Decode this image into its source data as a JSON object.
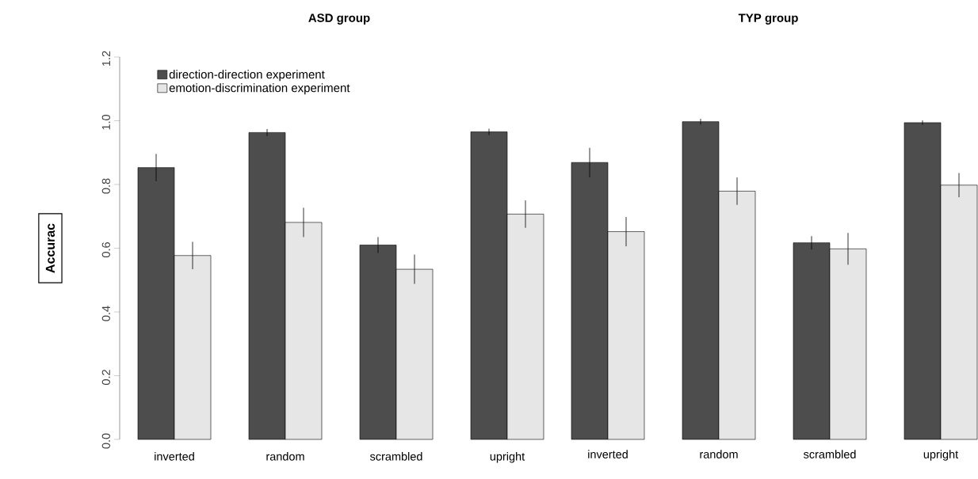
{
  "chart_data": [
    {
      "type": "bar",
      "title": "ASD group",
      "ylabel": "Accurac",
      "categories": [
        "inverted",
        "random",
        "scrambled",
        "upright"
      ],
      "series": [
        {
          "name": "direction-direction experiment",
          "color": "#4d4d4d",
          "values": [
            0.853,
            0.963,
            0.61,
            0.965
          ],
          "errors": [
            0.043,
            0.011,
            0.025,
            0.01
          ]
        },
        {
          "name": "emotion-discrimination experiment",
          "color": "#e6e6e6",
          "values": [
            0.577,
            0.681,
            0.534,
            0.707
          ],
          "errors": [
            0.043,
            0.046,
            0.046,
            0.043
          ]
        }
      ],
      "ylim": [
        0,
        1.2
      ],
      "yticks": [
        {
          "value": 0,
          "label": "0.0"
        },
        0.2,
        0.4,
        0.6,
        0.8,
        {
          "value": 1.0,
          "label": "1.0"
        },
        1.2
      ],
      "legend": "top left"
    },
    {
      "type": "bar",
      "title": "TYP group",
      "categories": [
        "inverted",
        "random",
        "scrambled",
        "upright"
      ],
      "series": [
        {
          "color": "#4d4d4d",
          "values": [
            0.869,
            0.997,
            0.617,
            0.994
          ],
          "errors": [
            0.046,
            0.009,
            0.021,
            0.007
          ]
        },
        {
          "color": "#e6e6e6",
          "values": [
            0.652,
            0.779,
            0.598,
            0.798
          ],
          "errors": [
            0.046,
            0.043,
            0.05,
            0.038
          ]
        }
      ],
      "ylim": [
        0,
        1.2
      ],
      "tick_labels": "x"
    }
  ]
}
